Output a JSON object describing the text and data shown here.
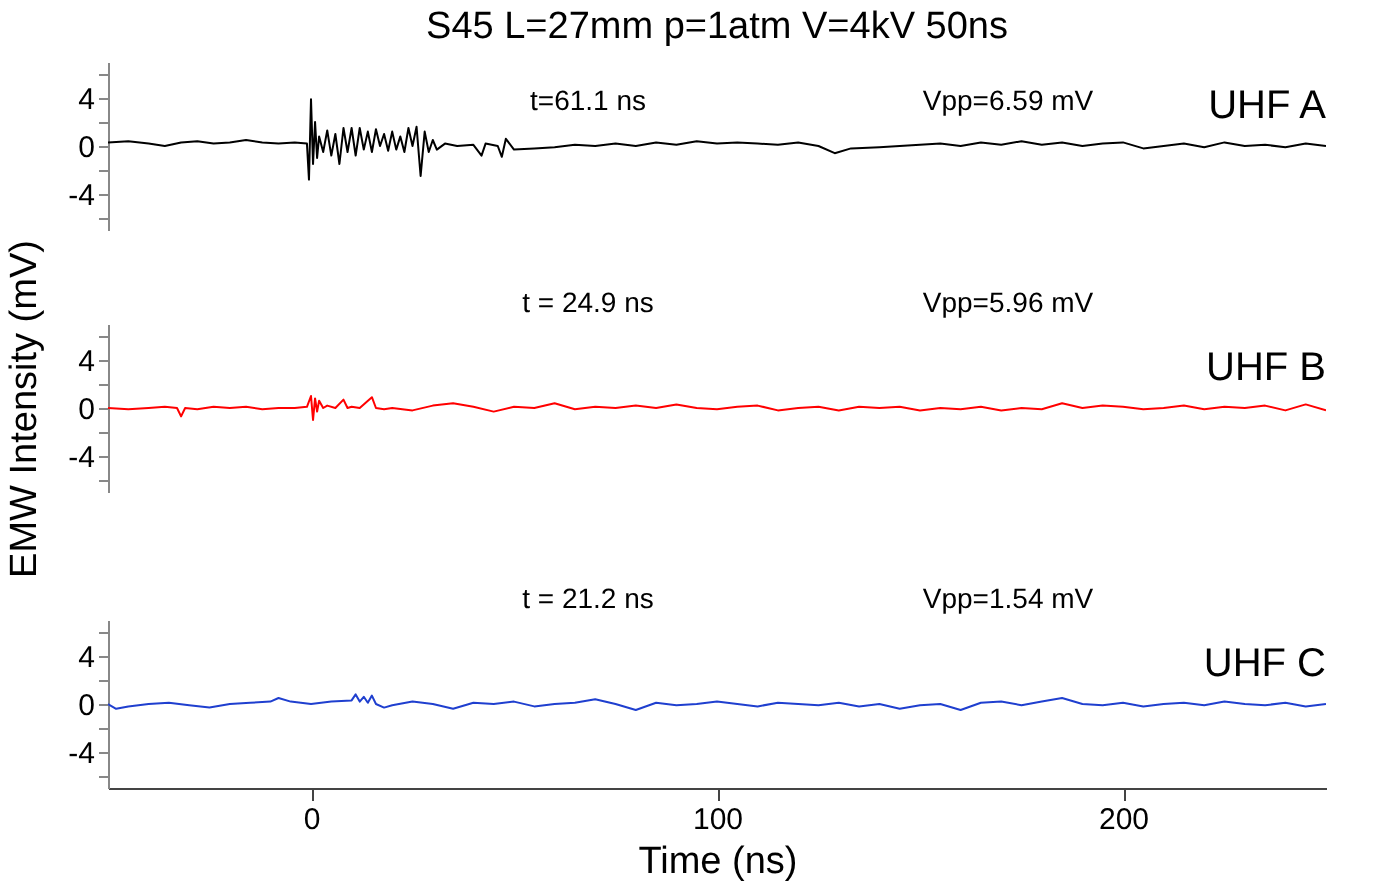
{
  "chart_data": [
    {
      "type": "line",
      "title": "S45 L=27mm p=1atm V=4kV 50ns",
      "annotations": [
        "t=61.1 ns",
        "Vpp=6.59 mV"
      ],
      "x": [
        -50,
        -45,
        -40,
        -36,
        -32,
        -28,
        -24,
        -20,
        -16,
        -12,
        -8,
        -4,
        -1,
        -0.5,
        0,
        0.5,
        1,
        1.5,
        2,
        3,
        4,
        5,
        6,
        7,
        8,
        9,
        10,
        11,
        12,
        13,
        14,
        15,
        16,
        17,
        18,
        19,
        20,
        21,
        22,
        23,
        24,
        25,
        26,
        27,
        28,
        29,
        30,
        31,
        33,
        36,
        40,
        42,
        43,
        46,
        47,
        48,
        50,
        55,
        60,
        65,
        70,
        75,
        80,
        85,
        90,
        95,
        100,
        105,
        110,
        115,
        120,
        125,
        129,
        133,
        140,
        145,
        150,
        155,
        160,
        165,
        170,
        175,
        180,
        185,
        190,
        195,
        200,
        205,
        210,
        215,
        220,
        225,
        230,
        235,
        240,
        245,
        250
      ],
      "series": [
        {
          "name": "UHF A",
          "color": "#000000",
          "values": [
            0.3,
            0.4,
            0.2,
            0.0,
            0.3,
            0.4,
            0.2,
            0.3,
            0.5,
            0.3,
            0.2,
            0.3,
            0.2,
            -2.8,
            3.9,
            -1.5,
            2.0,
            -1.0,
            0.8,
            -0.5,
            1.3,
            -0.8,
            1.0,
            -1.5,
            1.5,
            -0.5,
            1.5,
            -0.8,
            1.5,
            -0.3,
            1.2,
            -0.5,
            1.4,
            0.0,
            1.0,
            -0.4,
            1.2,
            -0.3,
            0.8,
            -0.5,
            1.5,
            0.0,
            1.6,
            -2.5,
            1.2,
            -0.5,
            0.5,
            -0.3,
            0.2,
            0.0,
            0.1,
            -0.8,
            0.2,
            0.0,
            -0.9,
            0.6,
            -0.3,
            -0.2,
            -0.1,
            0.1,
            0.0,
            0.2,
            0.0,
            0.3,
            0.1,
            0.4,
            0.2,
            0.3,
            0.2,
            0.1,
            0.3,
            0.0,
            -0.6,
            -0.2,
            -0.1,
            0.0,
            0.1,
            0.2,
            0.0,
            0.3,
            0.1,
            0.4,
            0.1,
            0.3,
            0.0,
            0.2,
            0.3,
            -0.2,
            0.0,
            0.2,
            -0.1,
            0.3,
            0.0,
            0.1,
            -0.1,
            0.2,
            0.0
          ]
        }
      ],
      "xlim": [
        -50,
        250
      ],
      "ylim": [
        -7,
        7
      ],
      "yticks": [
        {
          "value": -6,
          "label": null
        },
        -4,
        {
          "value": -2,
          "label": null
        },
        0,
        {
          "value": 2,
          "label": null
        },
        4,
        {
          "value": 6,
          "label": null
        }
      ],
      "tick_labels": "y"
    },
    {
      "type": "line",
      "ylabel": "EMW Intensity (mV)",
      "annotations": [
        "t = 24.9 ns",
        "Vpp=5.96 mV"
      ],
      "x": [
        -50,
        -45,
        -40,
        -36,
        -33,
        -32,
        -31,
        -28,
        -24,
        -20,
        -16,
        -12,
        -8,
        -4,
        -1,
        0,
        0.5,
        1,
        1.5,
        2,
        3,
        4,
        6,
        8,
        9,
        10,
        12,
        15,
        16,
        18,
        20,
        25,
        30,
        35,
        40,
        45,
        50,
        55,
        60,
        65,
        70,
        75,
        80,
        85,
        90,
        95,
        100,
        105,
        110,
        115,
        120,
        125,
        130,
        135,
        140,
        145,
        150,
        155,
        160,
        165,
        170,
        175,
        180,
        185,
        190,
        195,
        200,
        205,
        210,
        215,
        220,
        225,
        230,
        235,
        240,
        245,
        250
      ],
      "series": [
        {
          "name": "UHF B",
          "color": "#ff0000",
          "values": [
            0.0,
            -0.1,
            0.0,
            0.1,
            0.0,
            -0.7,
            0.0,
            -0.1,
            0.1,
            0.0,
            0.1,
            -0.1,
            0.0,
            0.0,
            0.1,
            1.0,
            -1.0,
            0.8,
            -0.3,
            0.6,
            0.0,
            0.2,
            0.0,
            0.7,
            0.0,
            0.1,
            0.0,
            0.9,
            0.0,
            -0.1,
            0.0,
            -0.2,
            0.2,
            0.4,
            0.1,
            -0.3,
            0.1,
            0.0,
            0.4,
            -0.1,
            0.1,
            0.0,
            0.2,
            0.0,
            0.3,
            0.0,
            -0.1,
            0.1,
            0.2,
            -0.2,
            0.0,
            0.1,
            -0.2,
            0.1,
            0.0,
            0.1,
            -0.2,
            0.0,
            -0.1,
            0.1,
            -0.2,
            0.0,
            -0.1,
            0.4,
            0.0,
            0.2,
            0.1,
            -0.1,
            0.0,
            0.2,
            -0.1,
            0.1,
            0.0,
            0.2,
            -0.2,
            0.3,
            -0.2
          ]
        }
      ],
      "xlim": [
        -50,
        250
      ],
      "ylim": [
        -7,
        7
      ],
      "yticks": [
        {
          "value": -6,
          "label": null
        },
        -4,
        {
          "value": -2,
          "label": null
        },
        0,
        {
          "value": 2,
          "label": null
        },
        4,
        {
          "value": 6,
          "label": null
        }
      ],
      "tick_labels": "y"
    },
    {
      "type": "line",
      "xlabel": "Time (ns)",
      "annotations": [
        "t = 21.2 ns",
        "Vpp=1.54 mV"
      ],
      "x": [
        -50,
        -48,
        -45,
        -40,
        -35,
        -30,
        -25,
        -20,
        -15,
        -10,
        -8,
        -5,
        0,
        5,
        10,
        11,
        12,
        13,
        14,
        15,
        16,
        18,
        20,
        25,
        30,
        35,
        40,
        45,
        50,
        55,
        60,
        65,
        70,
        75,
        80,
        85,
        90,
        95,
        100,
        105,
        110,
        115,
        120,
        125,
        130,
        135,
        140,
        145,
        150,
        155,
        160,
        165,
        170,
        175,
        180,
        185,
        190,
        195,
        200,
        205,
        210,
        215,
        220,
        225,
        230,
        235,
        240,
        245,
        250
      ],
      "series": [
        {
          "name": "UHF C",
          "color": "#1f3fcf",
          "values": [
            0.0,
            -0.4,
            -0.2,
            0.0,
            0.1,
            -0.1,
            -0.3,
            0.0,
            0.1,
            0.2,
            0.5,
            0.2,
            0.0,
            0.2,
            0.3,
            0.8,
            0.2,
            0.6,
            0.1,
            0.7,
            0.0,
            -0.3,
            -0.1,
            0.2,
            0.0,
            -0.4,
            0.1,
            0.0,
            0.2,
            -0.2,
            0.0,
            0.1,
            0.4,
            0.0,
            -0.5,
            0.1,
            -0.1,
            0.0,
            0.2,
            0.0,
            -0.2,
            0.1,
            0.0,
            -0.1,
            0.1,
            -0.2,
            0.0,
            -0.4,
            -0.1,
            0.0,
            -0.5,
            0.1,
            0.2,
            -0.1,
            0.2,
            0.5,
            0.0,
            -0.1,
            0.1,
            -0.2,
            0.0,
            0.1,
            -0.1,
            0.2,
            0.0,
            -0.1,
            0.1,
            -0.2,
            0.0
          ]
        }
      ],
      "xlim": [
        -50,
        250
      ],
      "ylim": [
        -7,
        7
      ],
      "yticks": [
        {
          "value": -6,
          "label": null
        },
        -4,
        {
          "value": -2,
          "label": null
        },
        0,
        {
          "value": 2,
          "label": null
        },
        4,
        {
          "value": 6,
          "label": null
        }
      ],
      "xticks": [
        0,
        100,
        200
      ]
    }
  ]
}
